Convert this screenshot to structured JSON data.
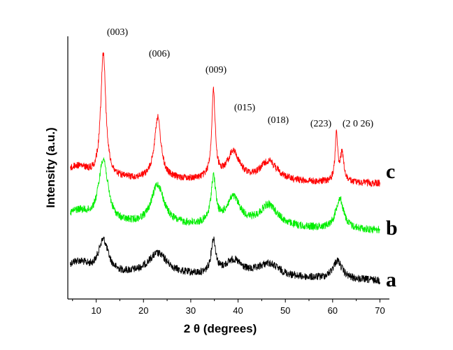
{
  "chart_data": {
    "type": "line",
    "title": "",
    "xlabel": "2 θ (degrees)",
    "ylabel": "Intensity (a.u.)",
    "xlim": [
      4,
      72
    ],
    "xticks": [
      10,
      20,
      30,
      40,
      50,
      60,
      70
    ],
    "yticks_shown": false,
    "grid": false,
    "legend": "inline labels at right end of each curve",
    "peak_labels": [
      {
        "text": "(003)",
        "x": 11.5
      },
      {
        "text": "(006)",
        "x": 23.0
      },
      {
        "text": "(009)",
        "x": 34.8
      },
      {
        "text": "(015)",
        "x": 39.0
      },
      {
        "text": "(018)",
        "x": 46.5
      },
      {
        "text": "(223)",
        "x": 60.8
      },
      {
        "text": "(2 0 26)",
        "x": 62.0
      }
    ],
    "series": [
      {
        "name": "a",
        "color": "#000000",
        "baseline": 0.0,
        "peaks": [
          {
            "x": 11.5,
            "h": 0.55,
            "w": 1.3
          },
          {
            "x": 23.0,
            "h": 0.35,
            "w": 2.6
          },
          {
            "x": 34.8,
            "h": 0.55,
            "w": 0.6
          },
          {
            "x": 39.0,
            "h": 0.25,
            "w": 2.2
          },
          {
            "x": 46.5,
            "h": 0.22,
            "w": 2.8
          },
          {
            "x": 61.0,
            "h": 0.3,
            "w": 1.2
          }
        ]
      },
      {
        "name": "b",
        "color": "#00ee00",
        "baseline": 0.0,
        "peaks": [
          {
            "x": 11.5,
            "h": 1.05,
            "w": 1.2
          },
          {
            "x": 23.0,
            "h": 0.65,
            "w": 1.6
          },
          {
            "x": 34.8,
            "h": 0.75,
            "w": 0.6
          },
          {
            "x": 39.0,
            "h": 0.45,
            "w": 1.8
          },
          {
            "x": 46.5,
            "h": 0.35,
            "w": 2.4
          },
          {
            "x": 61.5,
            "h": 0.5,
            "w": 1.0
          }
        ]
      },
      {
        "name": "c",
        "color": "#ff0000",
        "baseline": 0.0,
        "peaks": [
          {
            "x": 11.5,
            "h": 2.05,
            "w": 0.65
          },
          {
            "x": 23.0,
            "h": 1.0,
            "w": 0.85
          },
          {
            "x": 34.8,
            "h": 1.4,
            "w": 0.45
          },
          {
            "x": 39.0,
            "h": 0.45,
            "w": 1.6
          },
          {
            "x": 46.5,
            "h": 0.32,
            "w": 2.2
          },
          {
            "x": 60.8,
            "h": 0.75,
            "w": 0.35
          },
          {
            "x": 62.0,
            "h": 0.45,
            "w": 0.45
          }
        ]
      }
    ]
  }
}
